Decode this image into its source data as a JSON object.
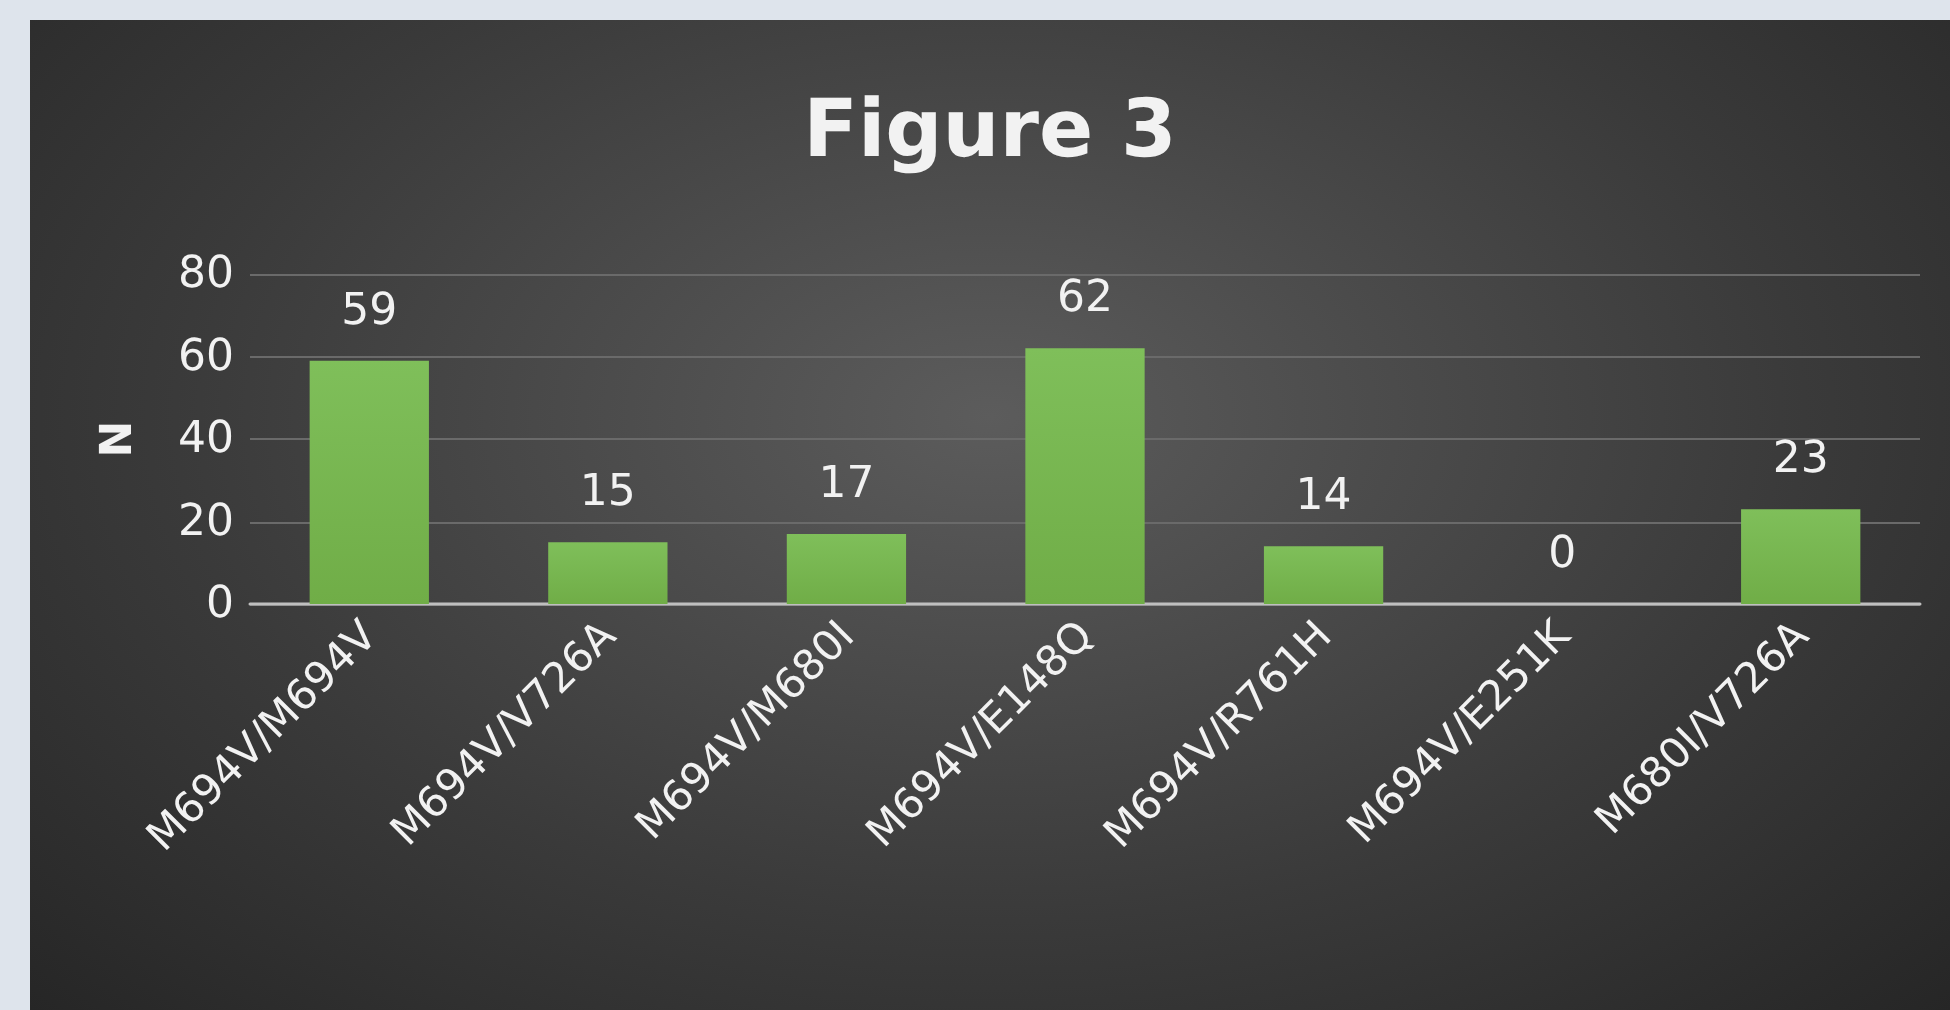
{
  "chart_data": {
    "type": "bar",
    "title": "Figure 3",
    "ylabel": "N",
    "categories": [
      "M694V/M694V",
      "M694V/V726A",
      "M694V/M680I",
      "M694V/E148Q",
      "M694V/R761H",
      "M694V/E251K",
      "M680I/V726A"
    ],
    "values": [
      59,
      15,
      17,
      62,
      14,
      0,
      23
    ],
    "color": "#70ad47",
    "ylim": [
      0,
      80
    ],
    "yticks": [
      0,
      20,
      40,
      60,
      80
    ],
    "grid": "y",
    "data_labels": true
  }
}
